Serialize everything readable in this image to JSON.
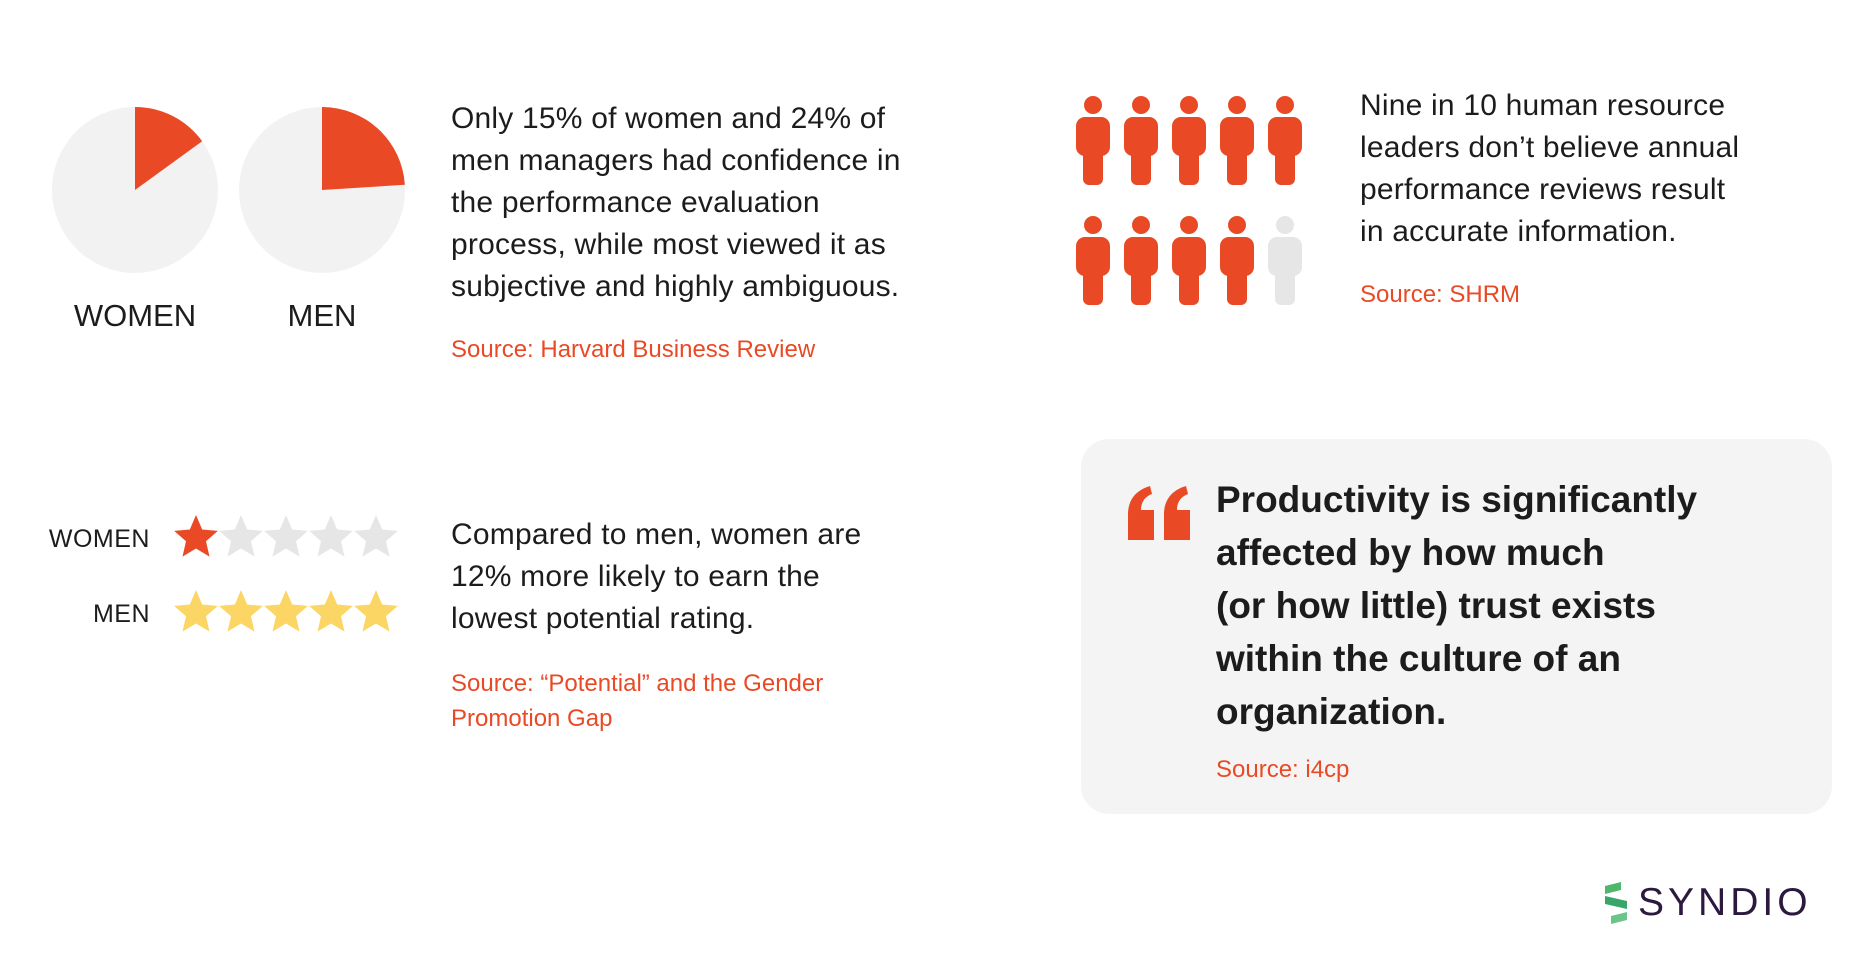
{
  "colors": {
    "accent": "#e94a25",
    "pie_bg": "#f2f2f2",
    "star_empty": "#e6e6e6",
    "star_gold": "#fbd665",
    "person_gray": "#e6e6e6",
    "card_bg": "#f4f4f4"
  },
  "pies": {
    "items": [
      {
        "label": "WOMEN",
        "fraction": 0.15
      },
      {
        "label": "MEN",
        "fraction": 0.24
      }
    ]
  },
  "stat1": {
    "lines": [
      "Only 15% of women and 24% of",
      "men managers had confidence in",
      "the performance evaluation",
      "process, while most viewed it as",
      "subjective and highly ambiguous."
    ],
    "source": "Source: Harvard Business Review"
  },
  "people": {
    "total": 10,
    "highlighted": 9,
    "icon": "person-icon"
  },
  "stat2": {
    "lines": [
      "Nine in 10 human resource",
      "leaders don’t believe annual",
      "performance reviews result",
      "in accurate information."
    ],
    "source": "Source: SHRM"
  },
  "ratings": {
    "max": 5,
    "rows": [
      {
        "label": "WOMEN",
        "filled": 1,
        "fill_color": "#e94a25"
      },
      {
        "label": "MEN",
        "filled": 5,
        "fill_color": "#fbd665"
      }
    ]
  },
  "stat3": {
    "lines": [
      "Compared to men, women are",
      "12% more likely to earn the",
      "lowest potential rating."
    ],
    "source_lines": [
      "Source: “Potential” and the Gender",
      "Promotion Gap"
    ]
  },
  "quote": {
    "icon": "quote-mark-icon",
    "lines": [
      "Productivity is significantly",
      "affected by how much",
      "(or how little) trust exists",
      "within the culture of an",
      "organization."
    ],
    "source": "Source: i4cp"
  },
  "brand": {
    "name": "SYNDIO",
    "icon": "syndio-logo-icon"
  }
}
